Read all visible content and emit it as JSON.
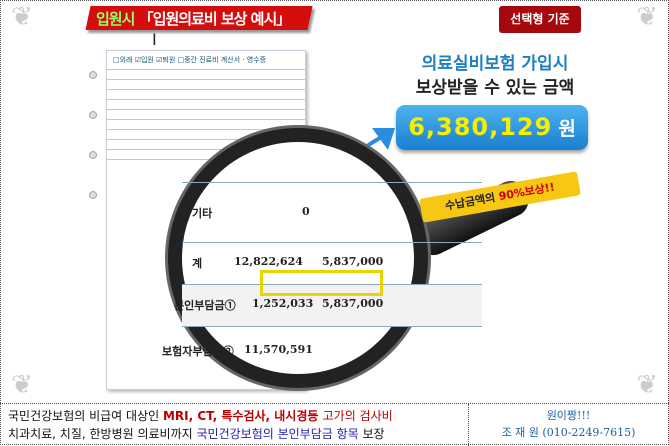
{
  "header": {
    "title_green": "입원시",
    "title_red": "「입원의료비 보상 예시」",
    "badge": "선택형 기준"
  },
  "receipt": {
    "heading": "□외래 ☑입원 ☑퇴원 □중간  진료비 계산서 · 영수증"
  },
  "amount": {
    "line1": "의료실비보험 가입시",
    "line2": "보상받을 수 있는 금액",
    "value": "6,380,129",
    "unit": "원"
  },
  "callout": {
    "prefix": "수납금액의 ",
    "highlight": "90%보상!!"
  },
  "magnified": {
    "rows": [
      {
        "label": "기타",
        "v1": "0",
        "v2": ""
      },
      {
        "label": "계",
        "v1": "12,822,624",
        "v2": "5,837,000"
      },
      {
        "label": "본인부담금①",
        "v1": "1,252,033",
        "v2": "5,837,000"
      },
      {
        "label": "보험자부담금②",
        "v1": "11,570,591",
        "v2": ""
      }
    ]
  },
  "footer": {
    "line1_a": "국민건강보험의 비급여 대상인 ",
    "line1_b": "MRI, CT, 특수검사, 내시경등 ",
    "line1_c": "고가의 검사비",
    "line2_a": "치과치료, 치질, 한방병원 의료비까지 ",
    "line2_b": "국민건강보험의 본인부담금 항목",
    "line2_c": " 보장",
    "contact_1": "원이짱!!!",
    "contact_2": "조 재 원 (010-2249-7615)"
  },
  "colors": {
    "title_red": "#d40d0d",
    "badge": "#a5090e",
    "amount_blue": "#1a7fd0",
    "amount_yellow": "#f4f000"
  }
}
